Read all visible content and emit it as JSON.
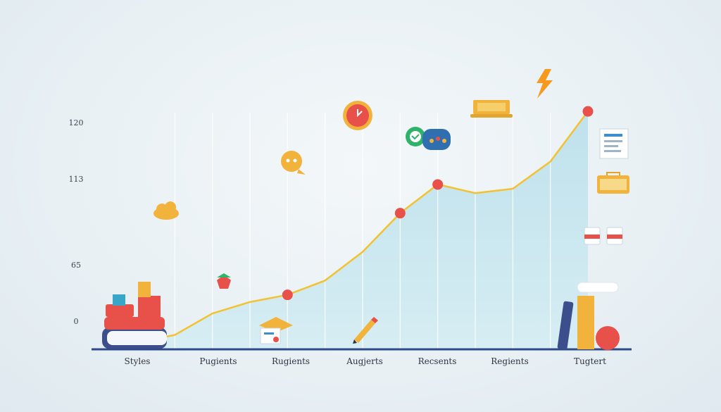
{
  "chart_data": {
    "type": "area",
    "title": "",
    "xlabel": "",
    "ylabel": "",
    "categories": [
      "Styles",
      "Pugients",
      "Rugients",
      "Augjerts",
      "Recsents",
      "Regients",
      "Tugtert"
    ],
    "yticks": [
      "0",
      "65",
      "113",
      "120"
    ],
    "series": [
      {
        "values": [
          {
            "x": 0.0,
            "y": 5
          },
          {
            "x": 0.5,
            "y": 10
          },
          {
            "x": 1.0,
            "y": 25
          },
          {
            "x": 1.5,
            "y": 33
          },
          {
            "x": 2.0,
            "y": 38
          },
          {
            "x": 2.5,
            "y": 48
          },
          {
            "x": 3.0,
            "y": 68
          },
          {
            "x": 3.5,
            "y": 95
          },
          {
            "x": 4.0,
            "y": 115
          },
          {
            "x": 4.5,
            "y": 109
          },
          {
            "x": 5.0,
            "y": 112
          },
          {
            "x": 5.5,
            "y": 131
          },
          {
            "x": 6.0,
            "y": 166
          }
        ]
      }
    ],
    "highlighted_points": [
      {
        "x": 2.0,
        "y": 38
      },
      {
        "x": 3.5,
        "y": 95
      },
      {
        "x": 4.0,
        "y": 115
      },
      {
        "x": 6.0,
        "y": 166
      }
    ],
    "ylim": [
      0,
      170
    ],
    "grid": "vertical",
    "colors": {
      "line": "#f2c230",
      "area": "#c4e4ee",
      "marker": "#e8504a",
      "axis": "#2f4a8a",
      "gridline": "#ffffff"
    }
  },
  "icons": [
    "books-icon",
    "cloud-icon",
    "plant-icon",
    "alarm-clock-icon",
    "chat-bubble-icon",
    "message-bubbles-icon",
    "laptop-icon",
    "lightning-icon",
    "document-icon",
    "keyboard-icon",
    "id-card-icon",
    "certificate-icon",
    "pencil-icon",
    "supplies-icon"
  ]
}
